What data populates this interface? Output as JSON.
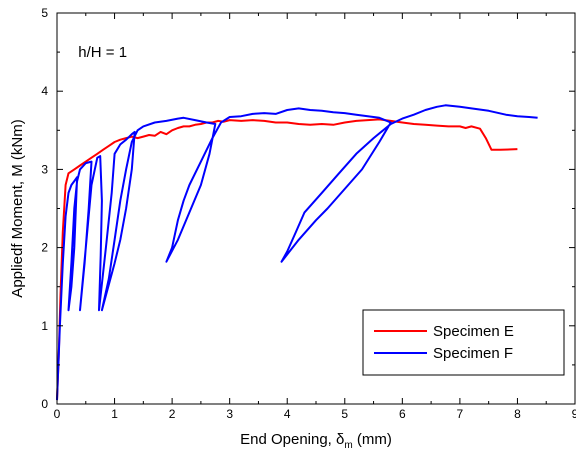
{
  "chart_data": {
    "type": "line",
    "title": "",
    "xlabel": {
      "prefix": "End Opening, ",
      "symbol": "δ",
      "subscript": "m",
      "suffix": " (mm)"
    },
    "ylabel": "Appliedf Moment, M (kNm)",
    "xlim": [
      0,
      9
    ],
    "ylim": [
      0,
      5
    ],
    "xticks": [
      "0",
      "1",
      "2",
      "3",
      "4",
      "5",
      "6",
      "7",
      "8",
      "9"
    ],
    "yticks": [
      "0",
      "1",
      "2",
      "3",
      "4",
      "5"
    ],
    "grid": false,
    "annotation": "h/H = 1",
    "legend_position": "bottom-right",
    "series": [
      {
        "name": "Specimen E",
        "color": "#ff0000",
        "points": [
          [
            0,
            0.05
          ],
          [
            0.03,
            0.6
          ],
          [
            0.06,
            1.4
          ],
          [
            0.1,
            2.2
          ],
          [
            0.15,
            2.8
          ],
          [
            0.2,
            2.95
          ],
          [
            0.3,
            3.0
          ],
          [
            0.4,
            3.05
          ],
          [
            0.5,
            3.1
          ],
          [
            0.6,
            3.15
          ],
          [
            0.7,
            3.2
          ],
          [
            0.8,
            3.25
          ],
          [
            0.9,
            3.3
          ],
          [
            1.0,
            3.35
          ],
          [
            1.1,
            3.38
          ],
          [
            1.2,
            3.4
          ],
          [
            1.3,
            3.42
          ],
          [
            1.4,
            3.4
          ],
          [
            1.5,
            3.42
          ],
          [
            1.6,
            3.44
          ],
          [
            1.7,
            3.43
          ],
          [
            1.8,
            3.48
          ],
          [
            1.9,
            3.45
          ],
          [
            2.0,
            3.5
          ],
          [
            2.1,
            3.53
          ],
          [
            2.2,
            3.55
          ],
          [
            2.3,
            3.55
          ],
          [
            2.4,
            3.57
          ],
          [
            2.5,
            3.58
          ],
          [
            2.6,
            3.6
          ],
          [
            2.7,
            3.6
          ],
          [
            2.8,
            3.62
          ],
          [
            2.9,
            3.61
          ],
          [
            3.0,
            3.63
          ],
          [
            3.2,
            3.62
          ],
          [
            3.4,
            3.63
          ],
          [
            3.6,
            3.62
          ],
          [
            3.8,
            3.6
          ],
          [
            4.0,
            3.6
          ],
          [
            4.2,
            3.58
          ],
          [
            4.4,
            3.57
          ],
          [
            4.6,
            3.58
          ],
          [
            4.8,
            3.57
          ],
          [
            5.0,
            3.6
          ],
          [
            5.2,
            3.62
          ],
          [
            5.4,
            3.63
          ],
          [
            5.6,
            3.64
          ],
          [
            5.8,
            3.62
          ],
          [
            6.0,
            3.6
          ],
          [
            6.2,
            3.58
          ],
          [
            6.4,
            3.57
          ],
          [
            6.6,
            3.56
          ],
          [
            6.8,
            3.55
          ],
          [
            7.0,
            3.55
          ],
          [
            7.1,
            3.53
          ],
          [
            7.2,
            3.55
          ],
          [
            7.35,
            3.52
          ],
          [
            7.45,
            3.4
          ],
          [
            7.55,
            3.25
          ],
          [
            7.7,
            3.25
          ],
          [
            8.0,
            3.26
          ]
        ]
      },
      {
        "name": "Specimen F",
        "color": "#0000ff",
        "points": [
          [
            0,
            0.05
          ],
          [
            0.05,
            1.0
          ],
          [
            0.1,
            1.8
          ],
          [
            0.15,
            2.4
          ],
          [
            0.2,
            2.7
          ],
          [
            0.25,
            2.8
          ],
          [
            0.3,
            2.85
          ],
          [
            0.35,
            2.9
          ],
          [
            0.3,
            2.0
          ],
          [
            0.25,
            1.5
          ],
          [
            0.2,
            1.2
          ],
          [
            0.25,
            1.8
          ],
          [
            0.3,
            2.5
          ],
          [
            0.35,
            2.85
          ],
          [
            0.4,
            3.0
          ],
          [
            0.5,
            3.08
          ],
          [
            0.6,
            3.1
          ],
          [
            0.55,
            2.5
          ],
          [
            0.48,
            1.8
          ],
          [
            0.4,
            1.2
          ],
          [
            0.5,
            2.0
          ],
          [
            0.6,
            2.8
          ],
          [
            0.7,
            3.15
          ],
          [
            0.75,
            3.17
          ],
          [
            0.78,
            2.6
          ],
          [
            0.76,
            1.9
          ],
          [
            0.73,
            1.2
          ],
          [
            0.85,
            2.0
          ],
          [
            0.95,
            2.7
          ],
          [
            1.0,
            3.2
          ],
          [
            1.1,
            3.32
          ],
          [
            1.2,
            3.38
          ],
          [
            1.3,
            3.45
          ],
          [
            1.35,
            3.48
          ],
          [
            1.3,
            3.0
          ],
          [
            1.2,
            2.5
          ],
          [
            1.1,
            2.1
          ],
          [
            1.0,
            1.8
          ],
          [
            0.78,
            1.2
          ],
          [
            0.9,
            1.6
          ],
          [
            1.0,
            2.1
          ],
          [
            1.1,
            2.6
          ],
          [
            1.2,
            3.0
          ],
          [
            1.3,
            3.35
          ],
          [
            1.4,
            3.5
          ],
          [
            1.5,
            3.55
          ],
          [
            1.7,
            3.6
          ],
          [
            1.9,
            3.62
          ],
          [
            2.1,
            3.65
          ],
          [
            2.2,
            3.66
          ],
          [
            2.4,
            3.63
          ],
          [
            2.6,
            3.6
          ],
          [
            2.75,
            3.58
          ],
          [
            2.65,
            3.2
          ],
          [
            2.5,
            2.8
          ],
          [
            2.3,
            2.45
          ],
          [
            2.1,
            2.1
          ],
          [
            1.9,
            1.82
          ],
          [
            2.0,
            2.0
          ],
          [
            2.1,
            2.35
          ],
          [
            2.2,
            2.6
          ],
          [
            2.3,
            2.8
          ],
          [
            2.5,
            3.1
          ],
          [
            2.7,
            3.4
          ],
          [
            2.85,
            3.6
          ],
          [
            3.0,
            3.67
          ],
          [
            3.2,
            3.68
          ],
          [
            3.4,
            3.71
          ],
          [
            3.6,
            3.72
          ],
          [
            3.8,
            3.71
          ],
          [
            4.0,
            3.76
          ],
          [
            4.2,
            3.78
          ],
          [
            4.4,
            3.76
          ],
          [
            4.6,
            3.75
          ],
          [
            4.8,
            3.73
          ],
          [
            5.0,
            3.72
          ],
          [
            5.2,
            3.7
          ],
          [
            5.4,
            3.68
          ],
          [
            5.6,
            3.66
          ],
          [
            5.8,
            3.6
          ],
          [
            5.6,
            3.35
          ],
          [
            5.3,
            3.0
          ],
          [
            5.0,
            2.75
          ],
          [
            4.7,
            2.5
          ],
          [
            4.5,
            2.35
          ],
          [
            4.2,
            2.1
          ],
          [
            3.9,
            1.82
          ],
          [
            4.0,
            1.95
          ],
          [
            4.15,
            2.2
          ],
          [
            4.3,
            2.45
          ],
          [
            4.6,
            2.7
          ],
          [
            4.9,
            2.95
          ],
          [
            5.2,
            3.2
          ],
          [
            5.5,
            3.4
          ],
          [
            5.8,
            3.58
          ],
          [
            6.0,
            3.65
          ],
          [
            6.2,
            3.7
          ],
          [
            6.4,
            3.76
          ],
          [
            6.6,
            3.8
          ],
          [
            6.75,
            3.82
          ],
          [
            7.0,
            3.8
          ],
          [
            7.2,
            3.78
          ],
          [
            7.5,
            3.75
          ],
          [
            7.8,
            3.7
          ],
          [
            8.0,
            3.68
          ],
          [
            8.2,
            3.67
          ],
          [
            8.35,
            3.66
          ]
        ]
      }
    ]
  }
}
